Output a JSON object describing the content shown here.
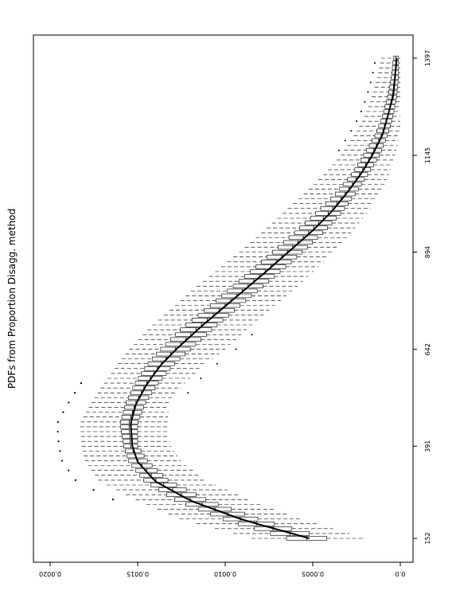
{
  "chart_data": {
    "type": "boxplot",
    "orientation": "rotated-90-clockwise",
    "ylabel": "PDFs from Proportion Disagg. method",
    "xlabel": "",
    "x_ticks": [
      "152",
      "391",
      "642",
      "894",
      "1145",
      "1397"
    ],
    "x_range": [
      130,
      1420
    ],
    "y_ticks": [
      "0.0",
      "0.0005",
      "0.0010",
      "0.0015",
      "0.0020"
    ],
    "y_range": [
      -5e-05,
      0.00205
    ],
    "grid": false,
    "legend": "none",
    "mean_curve": {
      "x": [
        152,
        200,
        250,
        300,
        350,
        391,
        450,
        500,
        550,
        600,
        642,
        700,
        750,
        800,
        850,
        894,
        950,
        1000,
        1050,
        1100,
        1145,
        1200,
        1250,
        1300,
        1350,
        1397
      ],
      "y": [
        0.00052,
        0.0009,
        0.0012,
        0.0014,
        0.0015,
        0.00153,
        0.00154,
        0.00151,
        0.00145,
        0.00137,
        0.00128,
        0.00114,
        0.00101,
        0.00088,
        0.00075,
        0.00064,
        0.0005,
        0.00039,
        0.0003,
        0.00022,
        0.00016,
        0.0001,
        7e-05,
        4e-05,
        3e-05,
        2e-05
      ]
    },
    "box_summary": {
      "x": [
        152,
        200,
        250,
        300,
        350,
        391,
        450,
        500,
        550,
        600,
        642,
        700,
        750,
        800,
        850,
        894,
        950,
        1000,
        1050,
        1100,
        1145,
        1200,
        1250,
        1300,
        1350,
        1397
      ],
      "q1": [
        0.00042,
        0.0008,
        0.0011,
        0.00132,
        0.00144,
        0.0015,
        0.0015,
        0.00146,
        0.00139,
        0.0013,
        0.0012,
        0.00106,
        0.00093,
        0.0008,
        0.00067,
        0.00056,
        0.00043,
        0.00033,
        0.00025,
        0.00018,
        0.00012,
        7e-05,
        4e-05,
        2e-05,
        1e-05,
        1e-05
      ],
      "q3": [
        0.00065,
        0.001,
        0.00128,
        0.00146,
        0.00155,
        0.00158,
        0.0016,
        0.00157,
        0.00152,
        0.00145,
        0.00137,
        0.00124,
        0.0011,
        0.00097,
        0.00084,
        0.00073,
        0.00059,
        0.00047,
        0.00036,
        0.00027,
        0.00021,
        0.00014,
        0.0001,
        7e-05,
        5e-05,
        4e-05
      ],
      "whisker_low": [
        0.0002,
        0.00055,
        0.00085,
        0.0011,
        0.00125,
        0.00131,
        0.00133,
        0.00132,
        0.00124,
        0.00112,
        0.001,
        0.00086,
        0.00073,
        0.0006,
        0.00048,
        0.00038,
        0.00027,
        0.00018,
        0.00011,
        6e-05,
        3e-05,
        0.0,
        0.0,
        0.0,
        0.0,
        0.0
      ],
      "whisker_high": [
        0.00085,
        0.00125,
        0.0015,
        0.00172,
        0.0018,
        0.00182,
        0.00183,
        0.00177,
        0.0017,
        0.00162,
        0.00155,
        0.00143,
        0.0013,
        0.00118,
        0.00104,
        0.00092,
        0.00078,
        0.00066,
        0.00054,
        0.00043,
        0.00034,
        0.00026,
        0.0002,
        0.00016,
        0.00013,
        0.00011
      ]
    }
  }
}
